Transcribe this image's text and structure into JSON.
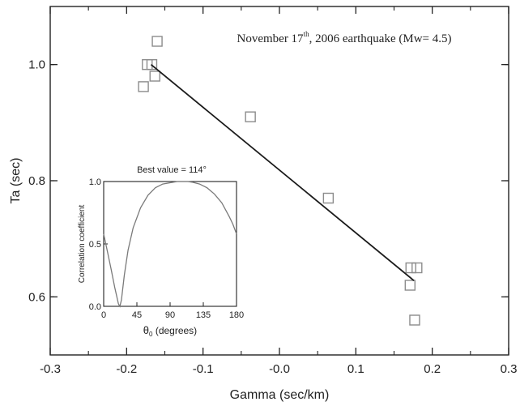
{
  "chart_data": [
    {
      "type": "scatter",
      "annotation": {
        "prefix": "November 17",
        "superscript": "th",
        "suffix": ", 2006 earthquake (Mw= 4.5)"
      },
      "xlabel": "Gamma (sec/km)",
      "ylabel": "Ta (sec)",
      "xlim": [
        -0.3,
        0.3
      ],
      "ylim": [
        0.5,
        1.1
      ],
      "xticks": [
        -0.3,
        -0.2,
        -0.1,
        0.0,
        0.1,
        0.2,
        0.3
      ],
      "xtick_labels": [
        "-0.3",
        "-0.2",
        "-0.1",
        "-0.0",
        "0.1",
        "0.2",
        "0.3"
      ],
      "yticks": [
        0.6,
        0.8,
        1.0
      ],
      "ytick_labels": [
        "0.6",
        "0.8",
        "1.0"
      ],
      "grid": false,
      "marker": "open-square",
      "series": [
        {
          "points": [
            {
              "x": -0.178,
              "y": 0.962
            },
            {
              "x": -0.173,
              "y": 1.0
            },
            {
              "x": -0.167,
              "y": 1.0
            },
            {
              "x": -0.163,
              "y": 0.98
            },
            {
              "x": -0.16,
              "y": 1.04
            },
            {
              "x": -0.038,
              "y": 0.91
            },
            {
              "x": 0.064,
              "y": 0.77
            },
            {
              "x": 0.171,
              "y": 0.62
            },
            {
              "x": 0.172,
              "y": 0.65
            },
            {
              "x": 0.18,
              "y": 0.65
            },
            {
              "x": 0.177,
              "y": 0.56
            }
          ]
        }
      ],
      "fit_line": {
        "x": [
          -0.168,
          0.176
        ],
        "y": [
          1.0,
          0.628
        ]
      },
      "line_color": "#1a1a1a",
      "marker_color": "#8c8c8c"
    },
    {
      "type": "line",
      "title": "Best value = 114°",
      "xlabel_main": "θ",
      "xlabel_sub": "0",
      "xlabel_rest": " (degrees)",
      "ylabel": "Correlation coefficient",
      "xlim": [
        0,
        180
      ],
      "ylim": [
        0,
        1.0
      ],
      "xticks": [
        0,
        45,
        90,
        135,
        180
      ],
      "xtick_labels": [
        "0",
        "45",
        "90",
        "135",
        "180"
      ],
      "yticks": [
        0.0,
        0.5,
        1.0
      ],
      "ytick_labels": [
        "0.0",
        "0.5",
        "1.0"
      ],
      "series": [
        {
          "x": [
            0,
            5,
            10,
            15,
            20,
            22,
            24,
            28,
            33,
            40,
            50,
            60,
            70,
            80,
            90,
            100,
            110,
            114,
            120,
            130,
            140,
            150,
            160,
            170,
            175,
            180
          ],
          "y": [
            0.58,
            0.44,
            0.3,
            0.15,
            0.02,
            0.0,
            0.05,
            0.25,
            0.45,
            0.63,
            0.79,
            0.89,
            0.95,
            0.98,
            0.99,
            1.0,
            1.0,
            1.0,
            0.995,
            0.98,
            0.95,
            0.9,
            0.83,
            0.72,
            0.66,
            0.58
          ]
        }
      ],
      "line_color": "#7a7a7a"
    }
  ]
}
